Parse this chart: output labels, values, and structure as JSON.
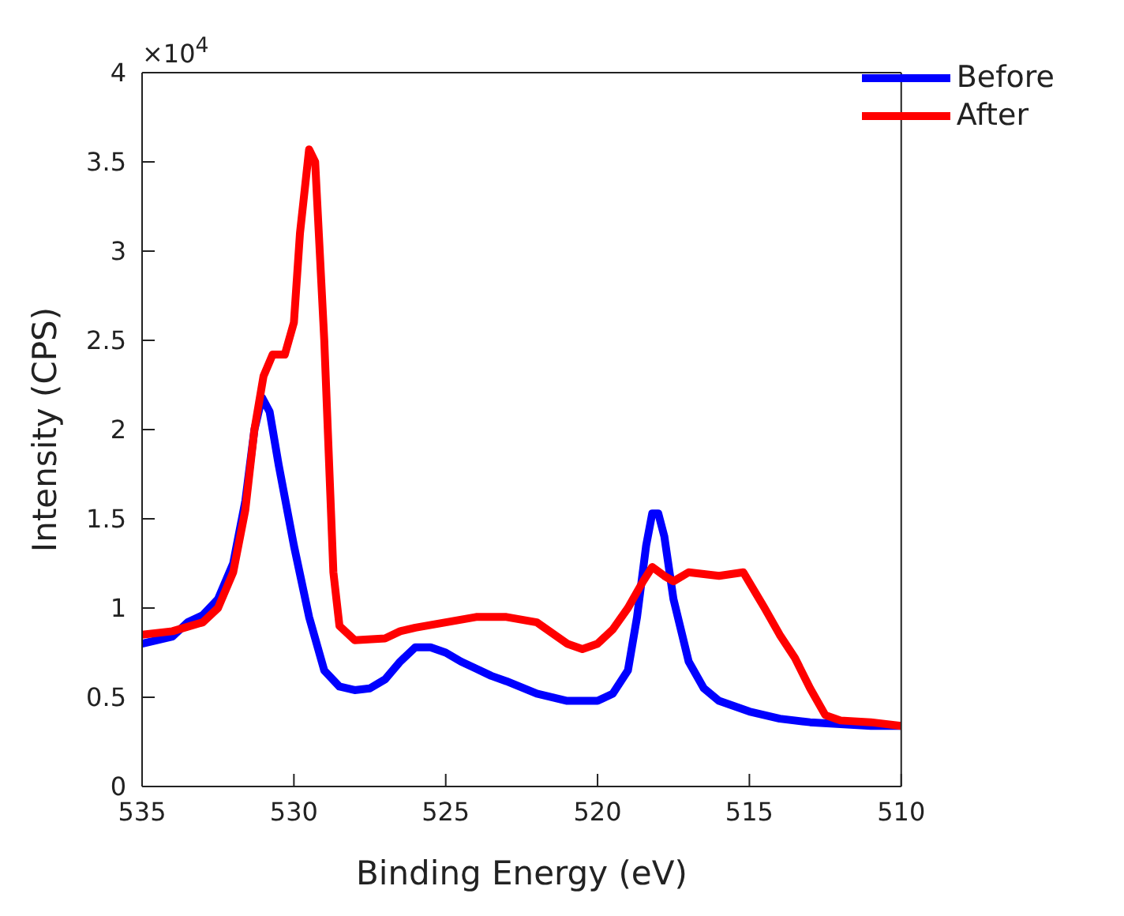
{
  "chart_data": {
    "type": "line",
    "xlabel": "Binding Energy (eV)",
    "ylabel": "Intensity (CPS)",
    "annotations": [
      "×10$^{4}$"
    ],
    "xlim": [
      535,
      510
    ],
    "xticks": [
      535,
      530,
      525,
      520,
      515,
      510
    ],
    "ylim": [
      0,
      4
    ],
    "yticks": [
      0,
      0.5,
      1,
      1.5,
      2,
      2.5,
      3,
      3.5,
      4
    ],
    "grid": false,
    "legend": "top right",
    "marker": "none",
    "line_style": "solid",
    "series": [
      {
        "name": "Before",
        "color": "#0000ff",
        "x": [
          535,
          534,
          533.5,
          533,
          532.5,
          532,
          531.6,
          531.3,
          531.05,
          530.8,
          530.5,
          530,
          529.5,
          529,
          528.5,
          528,
          527.5,
          527,
          526.5,
          526,
          525.5,
          525,
          524.5,
          524,
          523.5,
          523,
          522,
          521,
          520,
          519.5,
          519,
          518.7,
          518.4,
          518.2,
          518,
          517.8,
          517.5,
          517,
          516.5,
          516,
          515,
          514,
          513,
          512,
          511,
          510
        ],
        "values": [
          0.8,
          0.84,
          0.92,
          0.96,
          1.05,
          1.25,
          1.6,
          2,
          2.18,
          2.1,
          1.8,
          1.35,
          0.95,
          0.65,
          0.56,
          0.54,
          0.55,
          0.6,
          0.7,
          0.78,
          0.78,
          0.75,
          0.7,
          0.66,
          0.62,
          0.59,
          0.52,
          0.48,
          0.48,
          0.52,
          0.65,
          0.95,
          1.35,
          1.53,
          1.53,
          1.4,
          1.05,
          0.7,
          0.55,
          0.48,
          0.42,
          0.38,
          0.36,
          0.35,
          0.34,
          0.34
        ]
      },
      {
        "name": "After",
        "color": "#ff0000",
        "x": [
          535,
          534,
          533,
          532.5,
          532,
          531.6,
          531.3,
          531,
          530.7,
          530.3,
          530,
          529.8,
          529.5,
          529.3,
          529,
          528.7,
          528.5,
          528,
          527,
          526.5,
          526,
          525,
          524,
          523,
          522,
          521.5,
          521,
          520.5,
          520,
          519.5,
          519,
          518.5,
          518.2,
          517.8,
          517.5,
          517,
          516,
          515.2,
          514.5,
          514,
          513.5,
          513,
          512.5,
          512,
          511,
          510
        ],
        "values": [
          0.85,
          0.87,
          0.92,
          1,
          1.2,
          1.55,
          2,
          2.3,
          2.42,
          2.42,
          2.6,
          3.1,
          3.57,
          3.5,
          2.5,
          1.2,
          0.9,
          0.82,
          0.83,
          0.87,
          0.89,
          0.92,
          0.95,
          0.95,
          0.92,
          0.86,
          0.8,
          0.77,
          0.8,
          0.88,
          1,
          1.15,
          1.23,
          1.18,
          1.15,
          1.2,
          1.18,
          1.2,
          1,
          0.85,
          0.72,
          0.55,
          0.4,
          0.37,
          0.36,
          0.34
        ]
      }
    ]
  }
}
